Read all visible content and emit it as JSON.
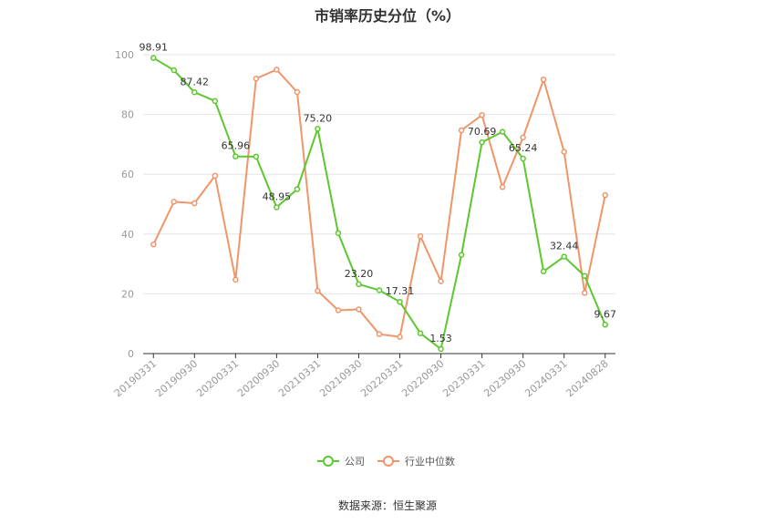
{
  "chart_data": {
    "type": "line",
    "title": "市销率历史分位（%）",
    "source": "数据来源：恒生聚源",
    "ylim": [
      0,
      100
    ],
    "yticks": [
      0,
      20,
      40,
      60,
      80,
      100
    ],
    "x": [
      "20190331",
      "20190630",
      "20190930",
      "20191231",
      "20200331",
      "20200630",
      "20200930",
      "20201231",
      "20210331",
      "20210630",
      "20210930",
      "20211231",
      "20220331",
      "20220630",
      "20220930",
      "20221231",
      "20230331",
      "20230630",
      "20230930",
      "20231231",
      "20240331",
      "20240630",
      "20240828"
    ],
    "xtick_labels": [
      "20190331",
      "20190930",
      "20200331",
      "20200930",
      "20210331",
      "20210930",
      "20220331",
      "20220930",
      "20230331",
      "20230930",
      "20240331",
      "20240828"
    ],
    "xtick_indices": [
      0,
      2,
      4,
      6,
      8,
      10,
      12,
      14,
      16,
      18,
      20,
      22
    ],
    "legend_position": "bottom",
    "grid": true,
    "series": [
      {
        "name": "公司",
        "color": "#5cc72e",
        "values": [
          98.91,
          94.8,
          87.42,
          84.5,
          65.96,
          65.9,
          48.95,
          55.0,
          75.2,
          40.3,
          23.2,
          21.2,
          17.31,
          6.8,
          1.53,
          33.0,
          70.69,
          74.2,
          65.24,
          27.5,
          32.44,
          26.0,
          9.67
        ],
        "labels": {
          "0": "98.91",
          "2": "87.42",
          "4": "65.96",
          "6": "48.95",
          "8": "75.20",
          "10": "23.20",
          "12": "17.31",
          "14": "1.53",
          "16": "70.69",
          "18": "65.24",
          "20": "32.44",
          "22": "9.67"
        }
      },
      {
        "name": "行业中位数",
        "color": "#f0956a",
        "values": [
          36.5,
          50.8,
          50.3,
          59.5,
          24.7,
          92.0,
          95.0,
          87.5,
          21.0,
          14.5,
          14.8,
          6.5,
          5.6,
          39.3,
          24.2,
          74.7,
          79.8,
          55.7,
          72.3,
          91.7,
          67.5,
          20.3,
          53.0
        ]
      }
    ]
  }
}
